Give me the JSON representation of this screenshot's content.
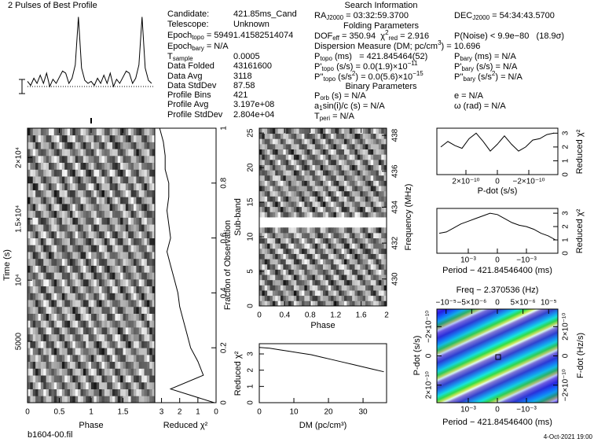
{
  "info": {
    "left": [
      [
        [
          "Candidate:"
        ],
        [
          "421.85ms_Cand"
        ]
      ],
      [
        [
          "Telescope:"
        ],
        [
          "Unknown"
        ]
      ],
      [
        [
          "Epoch",
          {
            "sub": "topo"
          },
          " = 59491.41582514074"
        ]
      ],
      [
        [
          "Epoch",
          {
            "sub": "bary"
          },
          " = N/A"
        ]
      ],
      [
        [
          "T",
          {
            "sub": "sample"
          }
        ],
        [
          "0.0005"
        ]
      ],
      [
        [
          "Data Folded"
        ],
        [
          "43161600"
        ]
      ],
      [
        [
          "Data Avg"
        ],
        [
          "3118"
        ]
      ],
      [
        [
          "Data StdDev"
        ],
        [
          "87.58"
        ]
      ],
      [
        [
          "Profile Bins"
        ],
        [
          "421"
        ]
      ],
      [
        [
          "Profile Avg"
        ],
        [
          "3.197e+08"
        ]
      ],
      [
        [
          "Profile StdDev"
        ],
        [
          "2.804e+04"
        ]
      ]
    ],
    "right": [
      {
        "heading": "Search Information"
      },
      {
        "cells": [
          [
            "RA",
            {
              "sub": "J2000"
            },
            " = 03:32:59.3700"
          ],
          [
            "DEC",
            {
              "sub": "J2000"
            },
            " = 54:34:43.5700"
          ]
        ]
      },
      {
        "heading": "Folding Parameters"
      },
      {
        "cells": [
          [
            "DOF",
            {
              "sub": "eff"
            },
            " = 350.94  χ",
            {
              "sup": "2"
            },
            {
              "sub": "red"
            },
            " = 2.916"
          ],
          [
            "P(Noise) < 9.9e−80   (18.9σ)"
          ]
        ]
      },
      {
        "cells": [
          [
            "Dispersion Measure (DM; pc/cm",
            {
              "sup": "3"
            },
            ") = 10.696"
          ]
        ]
      },
      {
        "cells": [
          [
            "P",
            {
              "sub": "topo"
            },
            " (ms)   = 421.845464(52)"
          ],
          [
            "P",
            {
              "sub": "bary"
            },
            " (ms) = N/A"
          ]
        ]
      },
      {
        "cells": [
          [
            "P'",
            {
              "sub": "topo"
            },
            " (s/s) = 0.0(1.9)×10",
            {
              "sup": "−11"
            }
          ],
          [
            "P'",
            {
              "sub": "bary"
            },
            " (s/s) = N/A"
          ]
        ]
      },
      {
        "cells": [
          [
            "P''",
            {
              "sub": "topo"
            },
            " (s/s",
            {
              "sup": "2"
            },
            ") = 0.0(5.6)×10",
            {
              "sup": "−15"
            }
          ],
          [
            "P''",
            {
              "sub": "bary"
            },
            " (s/s",
            {
              "sup": "2"
            },
            ") = N/A"
          ]
        ]
      },
      {
        "heading": "Binary Parameters"
      },
      {
        "cells": [
          [
            "P",
            {
              "sub": "orb"
            },
            " (s) = N/A"
          ],
          [
            "e = N/A"
          ]
        ]
      },
      {
        "cells": [
          [
            "a",
            {
              "sub": "1"
            },
            "sin(i)/c (s) = N/A"
          ],
          [
            "ω (rad) = N/A"
          ]
        ]
      },
      {
        "cells": [
          [
            "T",
            {
              "sub": "peri"
            },
            " = N/A"
          ]
        ]
      }
    ]
  },
  "footer": {
    "file": "b1604-00.fil",
    "date": "4-Oct-2021 19:00"
  },
  "chart_data": [
    {
      "type": "line",
      "title": "2 Pulses of Best Profile",
      "x": [
        0,
        0.05,
        0.1,
        0.15,
        0.2,
        0.25,
        0.3,
        0.35,
        0.4,
        0.45,
        0.5,
        0.55,
        0.6,
        0.65,
        0.7,
        0.75,
        0.8,
        0.85,
        0.9,
        0.95,
        1,
        1.05,
        1.1,
        1.15,
        1.2,
        1.25,
        1.3,
        1.35,
        1.4,
        1.45,
        1.5,
        1.55,
        1.6,
        1.65,
        1.7,
        1.75,
        1.8,
        1.85,
        1.9,
        1.95
      ],
      "values": [
        32,
        28,
        35,
        30,
        38,
        30,
        40,
        27,
        34,
        30,
        36,
        42,
        40,
        30,
        35,
        48,
        95,
        45,
        33,
        30,
        32,
        28,
        35,
        30,
        38,
        30,
        40,
        27,
        34,
        30,
        36,
        42,
        40,
        30,
        35,
        48,
        95,
        45,
        33,
        30
      ],
      "xlim": [
        0,
        2
      ],
      "ylim": [
        0,
        100
      ],
      "color": "#000000"
    },
    {
      "type": "heatmap",
      "xlabel": "Phase",
      "ylabel": "Time (s)",
      "xlim": [
        0,
        2
      ],
      "xticks": [
        0,
        0.5,
        1,
        1.5
      ],
      "ylim": [
        0,
        22400
      ],
      "yticks": [
        5000,
        {
          "value": 10000,
          "label": "10⁴"
        },
        {
          "value": 15000,
          "label": "1.5×10⁴"
        },
        {
          "value": 20000,
          "label": "2×10⁴"
        }
      ]
    },
    {
      "type": "line",
      "orientation": "horizontal",
      "xlabel": "Reduced χ²",
      "ylabel": "Fraction of Observation",
      "x": [
        0,
        0.05,
        0.1,
        0.15,
        0.2,
        0.25,
        0.3,
        0.35,
        0.4,
        0.45,
        0.5,
        0.55,
        0.6,
        0.65,
        0.7,
        0.75,
        0.8,
        0.85,
        0.9,
        0.95,
        1
      ],
      "values": [
        0.1,
        2.5,
        0.7,
        1.0,
        1.4,
        1.6,
        1.8,
        2.0,
        2.1,
        2.3,
        2.5,
        2.7,
        2.5,
        2.6,
        2.7,
        2.6,
        2.6,
        2.8,
        2.8,
        2.9,
        3.1
      ],
      "xlim": [
        3.37,
        0
      ],
      "xticks": [
        3,
        2,
        1,
        0
      ],
      "ylim": [
        0,
        1
      ],
      "yticks": [
        0,
        0.2,
        0.4,
        0.6,
        0.8,
        1
      ],
      "color": "#000000"
    },
    {
      "type": "heatmap",
      "xlabel": "Phase",
      "ylabel": "Sub-band",
      "y2label": "Frequency (MHz)",
      "xlim": [
        0,
        2
      ],
      "xticks": [
        0,
        0.4,
        0.8,
        1.2,
        1.6,
        2
      ],
      "ylim": [
        0,
        25.7
      ],
      "yticks": [
        0,
        5,
        10,
        15,
        20,
        25
      ],
      "y2lim": [
        428.5,
        438.4
      ],
      "y2ticks": [
        430,
        432,
        434,
        436,
        438
      ]
    },
    {
      "type": "line",
      "xlabel": "DM (pc/cm³)",
      "ylabel": "Reduced χ²",
      "x": [
        0,
        3,
        6,
        9,
        12,
        15,
        18,
        21,
        24,
        27,
        30,
        33,
        36
      ],
      "values": [
        3.4,
        3.35,
        3.25,
        3.15,
        3.05,
        2.95,
        2.8,
        2.65,
        2.5,
        2.35,
        2.2,
        2.05,
        1.9
      ],
      "xlim": [
        0,
        36.8
      ],
      "xticks": [
        0,
        10,
        20,
        30
      ],
      "ylim": [
        0,
        3.63
      ],
      "yticks": [
        0,
        1,
        2,
        3
      ],
      "color": "#000000"
    },
    {
      "type": "line",
      "xlabel": "P-dot (s/s)",
      "ylabel": "Reduced χ²",
      "x": [
        3.6e-10,
        3.15e-10,
        2.7e-10,
        2.25e-10,
        1.8e-10,
        1.35e-10,
        9e-11,
        4.5e-11,
        0,
        -4.5e-11,
        -9e-11,
        -1.35e-10,
        -1.8e-10,
        -2.25e-10,
        -2.7e-10,
        -3.15e-10,
        -3.6e-10
      ],
      "values": [
        2.0,
        2.4,
        2.1,
        1.9,
        2.6,
        3.0,
        2.4,
        1.7,
        2.2,
        2.8,
        2.2,
        1.7,
        2.0,
        2.5,
        2.6,
        2.9,
        3.0
      ],
      "xlim": [
        3.85e-10,
        -3.85e-10
      ],
      "xticks": [
        {
          "value": 2e-10,
          "label": "2×10⁻¹⁰"
        },
        0,
        {
          "value": -2e-10,
          "label": "−2×10⁻¹⁰"
        }
      ],
      "ylim": [
        0,
        3.36
      ],
      "yticks": [
        0,
        1,
        2,
        3
      ],
      "color": "#000000"
    },
    {
      "type": "line",
      "xlabel": "Period − 421.84546400 (ms)",
      "ylabel": "Reduced χ²",
      "x": [
        0.002,
        0.00175,
        0.0015,
        0.00125,
        0.001,
        0.00075,
        0.0005,
        0.00025,
        0,
        -0.00025,
        -0.0005,
        -0.00075,
        -0.001,
        -0.00125,
        -0.0015,
        -0.00175,
        -0.002
      ],
      "values": [
        1.5,
        1.6,
        1.9,
        2.2,
        2.4,
        2.6,
        2.8,
        3.0,
        2.9,
        2.6,
        2.3,
        2.1,
        2.0,
        1.8,
        1.5,
        1.3,
        1.0
      ],
      "xlim": [
        0.00208,
        -0.00208
      ],
      "xticks": [
        {
          "value": 0.001,
          "label": "10⁻³"
        },
        0,
        {
          "value": -0.001,
          "label": "−10⁻³"
        }
      ],
      "ylim": [
        0,
        3.36
      ],
      "yticks": [
        0,
        1,
        2,
        3
      ],
      "color": "#000000"
    },
    {
      "type": "contour",
      "xlabel": "Period − 421.84546400 (ms)",
      "x2label": "Freq − 2.370536 (Hz)",
      "ylabel": "P-dot (s/s)",
      "y2label": "F-dot (Hz/s)",
      "xlim": [
        0.00208,
        -0.00208
      ],
      "xticks": [
        {
          "value": 0.001,
          "label": "10⁻³"
        },
        0,
        {
          "value": -0.001,
          "label": "−10⁻³"
        }
      ],
      "x2lim": [
        -1.18e-05,
        1.18e-05
      ],
      "x2ticks": [
        {
          "value": -1e-05,
          "label": "−10⁻⁵"
        },
        {
          "value": -5e-06,
          "label": "−5×10⁻⁶"
        },
        0,
        {
          "value": 5e-06,
          "label": "5×10⁻⁶"
        },
        {
          "value": 1e-05,
          "label": "10⁻⁵"
        }
      ],
      "ylim": [
        3.2e-10,
        -3.2e-10
      ],
      "yticks": [
        {
          "value": 2e-10,
          "label": "2×10⁻¹⁰"
        },
        0,
        {
          "value": -2e-10,
          "label": "−2×10⁻¹⁰"
        }
      ],
      "y2lim": [
        -3.2e-10,
        3.2e-10
      ],
      "y2ticks": [
        {
          "value": -2e-10,
          "label": "−2×10⁻¹⁰"
        },
        0,
        {
          "value": 2e-10,
          "label": "2×10⁻¹⁰"
        }
      ]
    }
  ]
}
